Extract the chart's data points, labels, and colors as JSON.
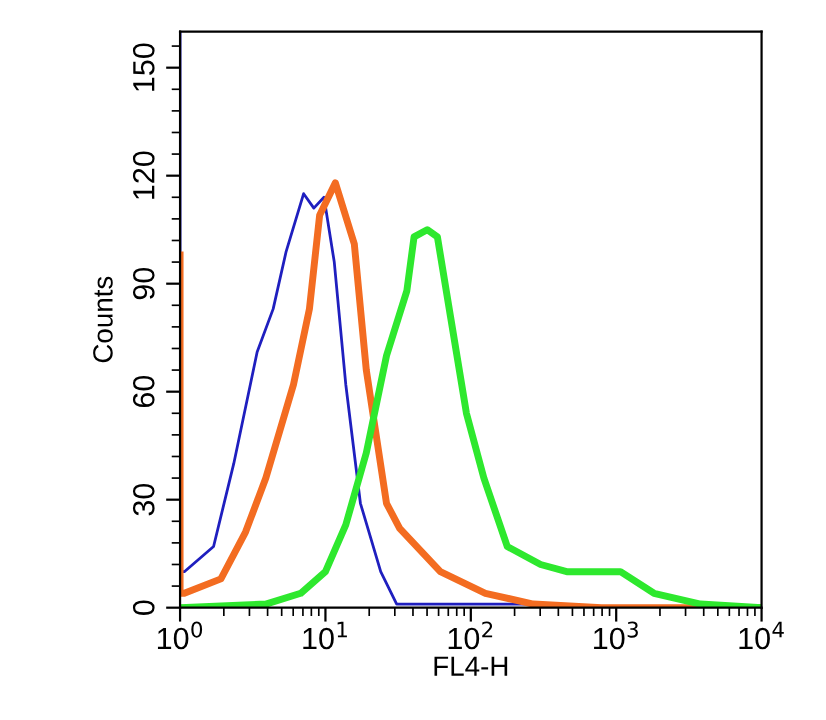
{
  "chart_data": {
    "type": "line",
    "xlabel": "FL4-H",
    "ylabel": "Counts",
    "log": "x",
    "grid": false,
    "marker": "none",
    "line_style": "solid",
    "xlim": [
      1,
      10000
    ],
    "xticks": [
      {
        "value": 1,
        "label": "10$^{0}$"
      },
      {
        "value": 10,
        "label": "10$^{1}$"
      },
      {
        "value": 100,
        "label": "10$^{2}$"
      },
      {
        "value": 1000,
        "label": "10$^{3}$"
      },
      {
        "value": 10000,
        "label": "10$^{4}$"
      }
    ],
    "ylim": [
      0,
      160
    ],
    "yticks": [
      0,
      30,
      60,
      90,
      120,
      150
    ],
    "series": [
      {
        "color": "#1f1fbf",
        "x": [
          1,
          1,
          1.07,
          1.7,
          2.34,
          3.39,
          4.37,
          5.37,
          7.08,
          8.32,
          9.77,
          11.5,
          13.8,
          17.4,
          24,
          30.9,
          100,
          370,
          400,
          10000
        ],
        "values": [
          160,
          10,
          10,
          17,
          40,
          71,
          83,
          99,
          115,
          111,
          114,
          96,
          62,
          29,
          10,
          1,
          1,
          1,
          0,
          0
        ]
      },
      {
        "color": "#f36c21",
        "x": [
          1,
          1,
          1.07,
          1.91,
          2.82,
          3.89,
          6.03,
          7.76,
          9.12,
          11.7,
          15.8,
          19.1,
          26.3,
          32.4,
          61.7,
          126,
          269,
          794,
          10000
        ],
        "values": [
          98,
          4,
          4,
          8,
          21,
          36,
          62,
          83,
          109,
          118,
          101,
          66,
          29,
          22,
          10,
          4,
          1,
          0,
          0
        ]
      },
      {
        "color": "#2ee82e",
        "x": [
          1,
          3.89,
          6.76,
          10,
          13.8,
          19.1,
          26.3,
          36.3,
          40.7,
          50.1,
          58.9,
          72.4,
          93.3,
          123,
          178,
          302,
          457,
          776,
          1070,
          1820,
          3800,
          10000
        ],
        "values": [
          0,
          1,
          4,
          10,
          23,
          43,
          70,
          88,
          103,
          105,
          103,
          81,
          54,
          36,
          17,
          12,
          10,
          10,
          10,
          4,
          1,
          0
        ]
      }
    ]
  }
}
